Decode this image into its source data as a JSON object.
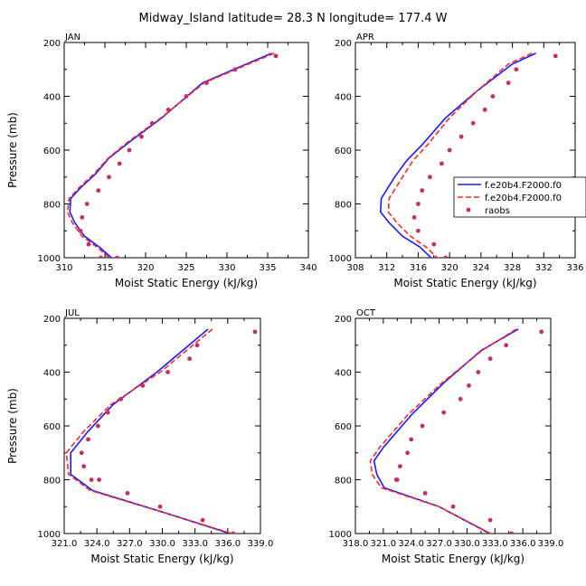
{
  "figure": {
    "title": "Midway_Island  latitude= 28.3 N longitude= 177.4 W",
    "legend_labels": [
      "f.e20b4.F2000.f0",
      "f.e20b4.F2000.f0",
      "raobs"
    ]
  },
  "colors": {
    "model_a": "#1a1aff",
    "model_b": "#ff2a2a",
    "raobs": "#c0306a"
  },
  "chart_data": [
    {
      "type": "line",
      "panel": "JAN",
      "title": "JAN",
      "xlabel": "Moist Static Energy (kJ/kg)",
      "ylabel": "Pressure (mb)",
      "xlim": [
        310,
        340
      ],
      "ylim": [
        1000,
        200
      ],
      "y_inverted": true,
      "xticks": [
        310,
        315,
        320,
        325,
        330,
        335,
        340
      ],
      "xticklabels": [
        "310",
        "315",
        "320",
        "325",
        "330",
        "335",
        "340"
      ],
      "yticks": [
        200,
        400,
        600,
        800,
        1000
      ],
      "yticklabels": [
        "200",
        "400",
        "600",
        "800",
        "1000"
      ],
      "show_legend": false,
      "series": [
        {
          "kind": "line",
          "style": "solid",
          "color_key": "model_a",
          "x": [
            335.5,
            327,
            322,
            318,
            315.5,
            313.8,
            312,
            310.8,
            310.7,
            311.3,
            312.5,
            314.3,
            316.2
          ],
          "y": [
            240,
            350,
            480,
            570,
            630,
            690,
            740,
            780,
            830,
            870,
            920,
            960,
            1010
          ]
        },
        {
          "kind": "line",
          "style": "dashed",
          "color_key": "model_b",
          "x": [
            335.8,
            327.2,
            321.9,
            317.8,
            315.4,
            313.6,
            311.8,
            310.6,
            310.4,
            311.0,
            312.2,
            314.0,
            315.9
          ],
          "y": [
            240,
            350,
            480,
            570,
            630,
            690,
            740,
            780,
            830,
            870,
            920,
            960,
            1010
          ]
        },
        {
          "kind": "scatter",
          "color_key": "raobs",
          "x": [
            336,
            331,
            327.5,
            325,
            322.8,
            320.8,
            319.5,
            318,
            316.8,
            315.5,
            314.2,
            312.8,
            312.2,
            312,
            313,
            314.5,
            316.5
          ],
          "y": [
            250,
            300,
            350,
            400,
            450,
            500,
            550,
            600,
            650,
            700,
            750,
            800,
            850,
            900,
            950,
            1000,
            1000
          ]
        }
      ]
    },
    {
      "type": "line",
      "panel": "APR",
      "title": "APR",
      "xlabel": "Moist Static Energy (kJ/kg)",
      "ylabel": "",
      "xlim": [
        308,
        336
      ],
      "ylim": [
        1000,
        200
      ],
      "y_inverted": true,
      "xticks": [
        308,
        312,
        316,
        320,
        324,
        328,
        332,
        336
      ],
      "xticklabels": [
        "308",
        "312",
        "316",
        "320",
        "324",
        "328",
        "332",
        "336"
      ],
      "yticks": [
        200,
        400,
        600,
        800,
        1000
      ],
      "yticklabels": [
        "200",
        "400",
        "600",
        "800",
        "1000"
      ],
      "show_legend": true,
      "legend_position": "right",
      "series": [
        {
          "kind": "line",
          "style": "solid",
          "color_key": "model_a",
          "x": [
            331,
            328,
            323.5,
            319.5,
            316.5,
            314.5,
            313,
            311.3,
            311.2,
            312.3,
            314,
            316.2,
            318
          ],
          "y": [
            240,
            280,
            380,
            480,
            580,
            640,
            700,
            780,
            830,
            870,
            920,
            960,
            1010
          ]
        },
        {
          "kind": "line",
          "style": "dashed",
          "color_key": "model_b",
          "x": [
            330.5,
            327.5,
            323.5,
            320,
            317.2,
            315.3,
            314,
            312.3,
            312.2,
            313.3,
            315,
            317,
            318.8
          ],
          "y": [
            240,
            280,
            380,
            480,
            580,
            640,
            700,
            780,
            830,
            870,
            920,
            960,
            1010
          ]
        },
        {
          "kind": "scatter",
          "color_key": "raobs",
          "x": [
            333.5,
            328.5,
            327.5,
            325.5,
            324.5,
            323,
            321.5,
            320,
            319,
            317.5,
            316.5,
            316,
            315.5,
            316,
            318,
            319.5
          ],
          "y": [
            250,
            300,
            350,
            400,
            450,
            500,
            550,
            600,
            650,
            700,
            750,
            800,
            850,
            900,
            950,
            1000
          ]
        }
      ]
    },
    {
      "type": "line",
      "panel": "JUL",
      "title": "JUL",
      "xlabel": "Moist Static Energy (kJ/kg)",
      "ylabel": "Pressure (mb)",
      "xlim": [
        321,
        339
      ],
      "ylim": [
        1000,
        200
      ],
      "y_inverted": true,
      "xticks": [
        321,
        324,
        327,
        330,
        333,
        336,
        339
      ],
      "xticklabels": [
        "321.0",
        "324.0",
        "327.0",
        "330.0",
        "333.0",
        "336.0",
        "339.0"
      ],
      "yticks": [
        200,
        400,
        600,
        800,
        1000
      ],
      "yticklabels": [
        "200",
        "400",
        "600",
        "800",
        "1000"
      ],
      "show_legend": false,
      "series": [
        {
          "kind": "line",
          "style": "solid",
          "color_key": "model_a",
          "x": [
            334.2,
            329.5,
            325.5,
            323.2,
            321.6,
            321.6,
            323.6,
            330,
            337
          ],
          "y": [
            240,
            400,
            520,
            620,
            700,
            780,
            840,
            920,
            1010
          ]
        },
        {
          "kind": "line",
          "style": "dashed",
          "color_key": "model_b",
          "x": [
            334.6,
            329.8,
            325.3,
            322.8,
            321.2,
            321.4,
            323.4,
            330,
            337.2
          ],
          "y": [
            240,
            400,
            520,
            620,
            700,
            780,
            840,
            920,
            1010
          ]
        },
        {
          "kind": "scatter",
          "color_key": "raobs",
          "x": [
            338.5,
            333.2,
            332.5,
            330.5,
            328.2,
            326.2,
            325,
            324.1,
            323.2,
            322.6,
            322.8,
            323.5,
            324.2,
            326.8,
            329.8,
            333.7,
            336.5
          ],
          "y": [
            250,
            300,
            350,
            400,
            450,
            500,
            550,
            600,
            650,
            700,
            750,
            800,
            800,
            850,
            900,
            950,
            1000
          ]
        }
      ]
    },
    {
      "type": "line",
      "panel": "OCT",
      "title": "OCT",
      "xlabel": "Moist Static Energy (kJ/kg)",
      "ylabel": "",
      "xlim": [
        318,
        339
      ],
      "ylim": [
        1000,
        200
      ],
      "y_inverted": true,
      "xticks": [
        318,
        321,
        324,
        327,
        330,
        333,
        336,
        339
      ],
      "xticklabels": [
        "318.0",
        "321.0",
        "324.0",
        "327.0",
        "330.0",
        "333.0",
        "336.0",
        "339.0"
      ],
      "yticks": [
        200,
        400,
        600,
        800,
        1000
      ],
      "yticklabels": [
        "200",
        "400",
        "600",
        "800",
        "1000"
      ],
      "show_legend": false,
      "series": [
        {
          "kind": "line",
          "style": "solid",
          "color_key": "model_a",
          "x": [
            335.5,
            331.5,
            327.5,
            324,
            321,
            320,
            320.3,
            321.1,
            327,
            333
          ],
          "y": [
            240,
            320,
            440,
            560,
            680,
            730,
            780,
            830,
            900,
            1010
          ]
        },
        {
          "kind": "line",
          "style": "dashed",
          "color_key": "model_b",
          "x": [
            335.3,
            331.6,
            327.3,
            323.6,
            320.6,
            319.6,
            319.8,
            320.8,
            327,
            333.1
          ],
          "y": [
            240,
            320,
            440,
            560,
            680,
            730,
            780,
            830,
            900,
            1010
          ]
        },
        {
          "kind": "scatter",
          "color_key": "raobs",
          "x": [
            338,
            334.2,
            332.5,
            331.2,
            330.2,
            329.3,
            327.5,
            325.2,
            324,
            323.6,
            322.8,
            322.4,
            322.5,
            325.5,
            328.5,
            332.5,
            334.8
          ],
          "y": [
            250,
            300,
            350,
            400,
            450,
            500,
            550,
            600,
            650,
            700,
            750,
            800,
            800,
            850,
            900,
            950,
            1000
          ]
        }
      ]
    }
  ]
}
